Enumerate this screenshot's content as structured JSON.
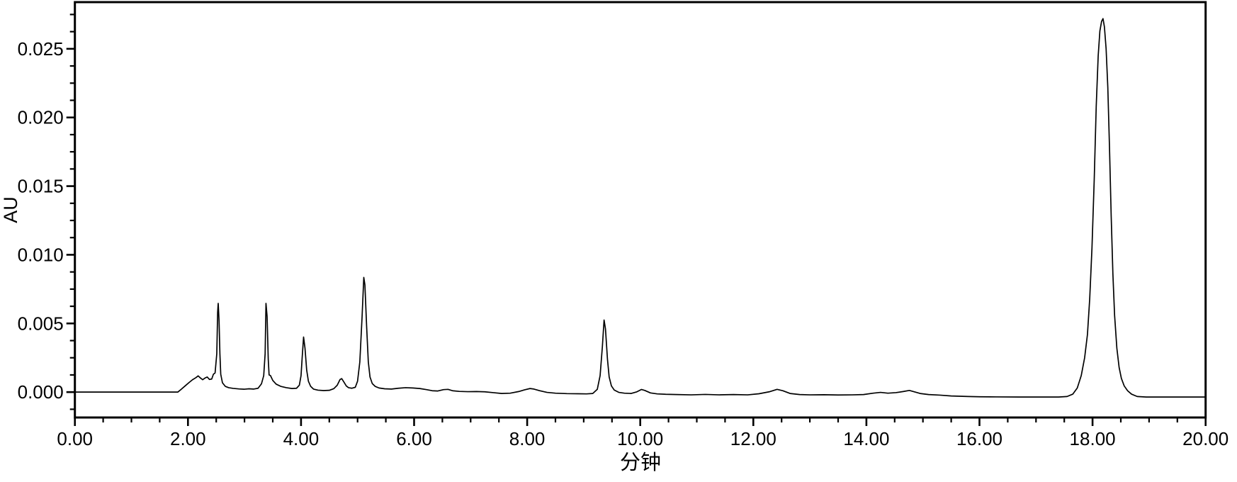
{
  "window": {
    "background": "#ffffff"
  },
  "chart_data": {
    "type": "line",
    "title": "",
    "xlabel": "分钟",
    "ylabel": "AU",
    "xlim": [
      0,
      20
    ],
    "ylim": [
      -0.00185,
      0.0284
    ],
    "grid": false,
    "legend": false,
    "line_color": "#000000",
    "axis_color": "#000000",
    "x_ticks": {
      "values": [
        0,
        2,
        4,
        6,
        8,
        10,
        12,
        14,
        16,
        18,
        20
      ],
      "labels": [
        "0.00",
        "2.00",
        "4.00",
        "6.00",
        "8.00",
        "10.00",
        "12.00",
        "14.00",
        "16.00",
        "18.00",
        "20.00"
      ],
      "minor_step": 0.5
    },
    "y_ticks": {
      "values": [
        0,
        0.005,
        0.01,
        0.015,
        0.02,
        0.025
      ],
      "labels": [
        "0.000",
        "0.005",
        "0.010",
        "0.015",
        "0.020",
        "0.025"
      ],
      "minor_step": 0.00125
    },
    "peaks": [
      {
        "rt": 2.53,
        "height_au": 0.0065
      },
      {
        "rt": 3.39,
        "height_au": 0.0065
      },
      {
        "rt": 4.05,
        "height_au": 0.004
      },
      {
        "rt": 4.71,
        "height_au": 0.001
      },
      {
        "rt": 5.11,
        "height_au": 0.0084
      },
      {
        "rt": 9.36,
        "height_au": 0.0053
      },
      {
        "rt": 18.19,
        "height_au": 0.0272
      }
    ],
    "series": [
      {
        "name": "detector-signal",
        "x": [
          0.0,
          1.0,
          1.82,
          1.88,
          1.95,
          2.02,
          2.08,
          2.14,
          2.18,
          2.22,
          2.26,
          2.3,
          2.34,
          2.38,
          2.42,
          2.45,
          2.48,
          2.51,
          2.525,
          2.535,
          2.55,
          2.565,
          2.58,
          2.61,
          2.66,
          2.72,
          2.8,
          2.9,
          3.0,
          3.08,
          3.16,
          3.24,
          3.3,
          3.34,
          3.365,
          3.38,
          3.4,
          3.42,
          3.435,
          3.46,
          3.5,
          3.56,
          3.64,
          3.74,
          3.84,
          3.92,
          3.97,
          4.0,
          4.02,
          4.045,
          4.07,
          4.1,
          4.13,
          4.17,
          4.22,
          4.3,
          4.4,
          4.5,
          4.58,
          4.64,
          4.69,
          4.72,
          4.76,
          4.8,
          4.84,
          4.9,
          4.96,
          5.0,
          5.04,
          5.08,
          5.11,
          5.13,
          5.16,
          5.19,
          5.22,
          5.26,
          5.31,
          5.38,
          5.48,
          5.6,
          5.72,
          5.85,
          5.98,
          6.1,
          6.22,
          6.32,
          6.42,
          6.52,
          6.6,
          6.68,
          6.8,
          6.95,
          7.1,
          7.25,
          7.4,
          7.55,
          7.7,
          7.85,
          7.95,
          8.05,
          8.12,
          8.22,
          8.35,
          8.5,
          8.7,
          8.9,
          9.05,
          9.16,
          9.24,
          9.29,
          9.33,
          9.36,
          9.385,
          9.42,
          9.45,
          9.49,
          9.54,
          9.62,
          9.72,
          9.84,
          9.94,
          10.02,
          10.08,
          10.18,
          10.3,
          10.45,
          10.65,
          10.9,
          11.15,
          11.4,
          11.65,
          11.9,
          12.1,
          12.28,
          12.42,
          12.52,
          12.65,
          12.82,
          13.0,
          13.25,
          13.5,
          13.75,
          13.95,
          14.12,
          14.25,
          14.38,
          14.52,
          14.65,
          14.76,
          14.85,
          14.95,
          15.1,
          15.3,
          15.5,
          15.65,
          15.8,
          16.0,
          16.3,
          16.7,
          17.1,
          17.4,
          17.55,
          17.65,
          17.73,
          17.8,
          17.86,
          17.91,
          17.95,
          17.99,
          18.03,
          18.065,
          18.1,
          18.13,
          18.16,
          18.185,
          18.21,
          18.24,
          18.27,
          18.3,
          18.33,
          18.36,
          18.39,
          18.43,
          18.47,
          18.51,
          18.56,
          18.62,
          18.69,
          18.79,
          18.95,
          19.2,
          19.6,
          20.0
        ],
        "y": [
          0,
          0,
          0,
          0.0002,
          0.00045,
          0.0007,
          0.0009,
          0.00105,
          0.00118,
          0.00103,
          0.0009,
          0.00102,
          0.0011,
          0.00092,
          0.00095,
          0.0013,
          0.0014,
          0.0028,
          0.0058,
          0.00646,
          0.0052,
          0.0028,
          0.0013,
          0.00068,
          0.00042,
          0.00032,
          0.00027,
          0.00023,
          0.00021,
          0.00024,
          0.00022,
          0.00028,
          0.0006,
          0.0012,
          0.0028,
          0.00646,
          0.0055,
          0.0024,
          0.00125,
          0.0012,
          0.00085,
          0.00058,
          0.00042,
          0.00032,
          0.00026,
          0.00028,
          0.0005,
          0.0012,
          0.0025,
          0.00401,
          0.0032,
          0.0016,
          0.0008,
          0.00042,
          0.00022,
          0.00014,
          0.00011,
          0.00013,
          0.00025,
          0.0005,
          0.00092,
          0.00098,
          0.00072,
          0.00045,
          0.00032,
          0.00028,
          0.00035,
          0.0008,
          0.0022,
          0.0055,
          0.00835,
          0.0078,
          0.0048,
          0.0022,
          0.0011,
          0.00062,
          0.00042,
          0.0003,
          0.00024,
          0.00022,
          0.00028,
          0.00032,
          0.0003,
          0.00026,
          0.00018,
          0.0001,
          8e-05,
          0.00018,
          0.0002,
          0.0001,
          5e-05,
          3e-05,
          4e-05,
          2e-05,
          -4e-05,
          -0.0001,
          -8e-05,
          4e-05,
          0.00016,
          0.00026,
          0.00022,
          0.0001,
          -2e-05,
          -8e-05,
          -0.00011,
          -0.00012,
          -0.00013,
          -0.0001,
          0.0002,
          0.0012,
          0.0033,
          0.00525,
          0.0046,
          0.0024,
          0.0011,
          0.00045,
          0.00015,
          -2e-05,
          -8e-05,
          -0.0001,
          2e-05,
          0.00019,
          0.00012,
          -6e-05,
          -0.00013,
          -0.00016,
          -0.00018,
          -0.0002,
          -0.00017,
          -0.0002,
          -0.00018,
          -0.0002,
          -0.00012,
          2e-05,
          0.0002,
          0.0001,
          -0.0001,
          -0.00018,
          -0.0002,
          -0.00019,
          -0.00021,
          -0.0002,
          -0.00018,
          -8e-05,
          -2e-05,
          -8e-05,
          -4e-05,
          4e-05,
          0.00012,
          2e-05,
          -0.0001,
          -0.00018,
          -0.00022,
          -0.00028,
          -0.0003,
          -0.00032,
          -0.00034,
          -0.00035,
          -0.00036,
          -0.00036,
          -0.00036,
          -0.00032,
          -0.00015,
          0.0003,
          0.0012,
          0.0025,
          0.0042,
          0.0068,
          0.0105,
          0.0155,
          0.0208,
          0.0245,
          0.0263,
          0.027,
          0.0272,
          0.0266,
          0.025,
          0.0222,
          0.0178,
          0.0128,
          0.0086,
          0.0056,
          0.0032,
          0.0018,
          0.001,
          0.00045,
          0.0001,
          -0.00015,
          -0.00032,
          -0.00036,
          -0.00036,
          -0.00036,
          -0.00036
        ]
      }
    ]
  }
}
